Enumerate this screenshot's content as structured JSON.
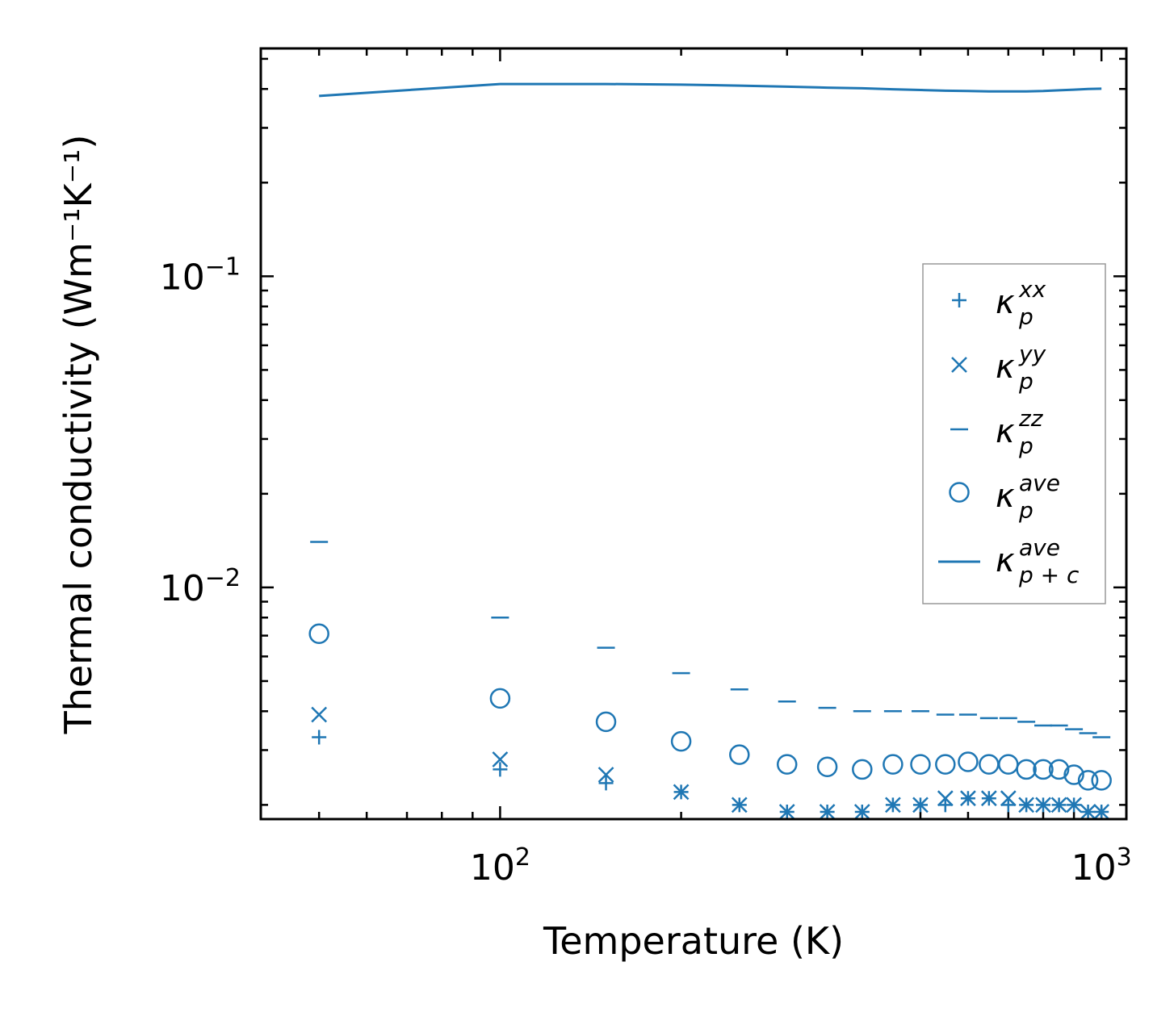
{
  "chart_data": {
    "type": "scatter",
    "title": "",
    "xlabel": "Temperature (K)",
    "ylabel": "Thermal conductivity (Wm⁻¹K⁻¹)",
    "xscale": "log",
    "yscale": "log",
    "xlim": [
      40,
      1100
    ],
    "ylim": [
      0.0018,
      0.54
    ],
    "x_ticks": [
      {
        "value": 100,
        "label": "10",
        "exp": "2"
      },
      {
        "value": 1000,
        "label": "10",
        "exp": "3"
      }
    ],
    "y_ticks": [
      {
        "value": 0.01,
        "label": "10",
        "exp": "−2"
      },
      {
        "value": 0.1,
        "label": "10",
        "exp": "−1"
      }
    ],
    "legend_position": "center-right",
    "color": "#1f77b4",
    "x": [
      50,
      100,
      150,
      200,
      250,
      300,
      350,
      400,
      450,
      500,
      550,
      600,
      650,
      700,
      750,
      800,
      850,
      900,
      950,
      1000
    ],
    "series": [
      {
        "name": "kp_xx",
        "label": {
          "base": "κ",
          "sub": "p",
          "sup": "xx"
        },
        "marker": "plus",
        "values": [
          0.0033,
          0.0026,
          0.00235,
          0.0022,
          0.002,
          0.0019,
          0.0019,
          0.0019,
          0.002,
          0.002,
          0.002,
          0.0021,
          0.0021,
          0.002,
          0.002,
          0.002,
          0.002,
          0.002,
          0.0019,
          0.0019
        ]
      },
      {
        "name": "kp_yy",
        "label": {
          "base": "κ",
          "sub": "p",
          "sup": "yy"
        },
        "marker": "x",
        "values": [
          0.0039,
          0.0028,
          0.0025,
          0.0022,
          0.002,
          0.0019,
          0.0019,
          0.0019,
          0.002,
          0.002,
          0.0021,
          0.0021,
          0.0021,
          0.0021,
          0.002,
          0.002,
          0.002,
          0.002,
          0.0019,
          0.0019
        ]
      },
      {
        "name": "kp_zz",
        "label": {
          "base": "κ",
          "sub": "p",
          "sup": "zz"
        },
        "marker": "hline",
        "values": [
          0.014,
          0.008,
          0.0064,
          0.0053,
          0.0047,
          0.0043,
          0.0041,
          0.004,
          0.004,
          0.004,
          0.0039,
          0.0039,
          0.0038,
          0.0038,
          0.0037,
          0.0036,
          0.0036,
          0.0035,
          0.0034,
          0.0033
        ]
      },
      {
        "name": "kp_ave",
        "label": {
          "base": "κ",
          "sub": "p",
          "sup": "ave"
        },
        "marker": "circle",
        "values": [
          0.0071,
          0.0044,
          0.0037,
          0.0032,
          0.0029,
          0.0027,
          0.00265,
          0.0026,
          0.0027,
          0.0027,
          0.0027,
          0.00275,
          0.0027,
          0.0027,
          0.0026,
          0.0026,
          0.0026,
          0.0025,
          0.0024,
          0.0024
        ]
      },
      {
        "name": "kpc_ave",
        "label": {
          "base": "κ",
          "sub": "p + c",
          "sup": "ave"
        },
        "marker": "line",
        "values": [
          0.38,
          0.415,
          0.415,
          0.413,
          0.41,
          0.407,
          0.404,
          0.402,
          0.399,
          0.397,
          0.395,
          0.394,
          0.393,
          0.393,
          0.393,
          0.394,
          0.396,
          0.398,
          0.4,
          0.401
        ]
      }
    ]
  }
}
